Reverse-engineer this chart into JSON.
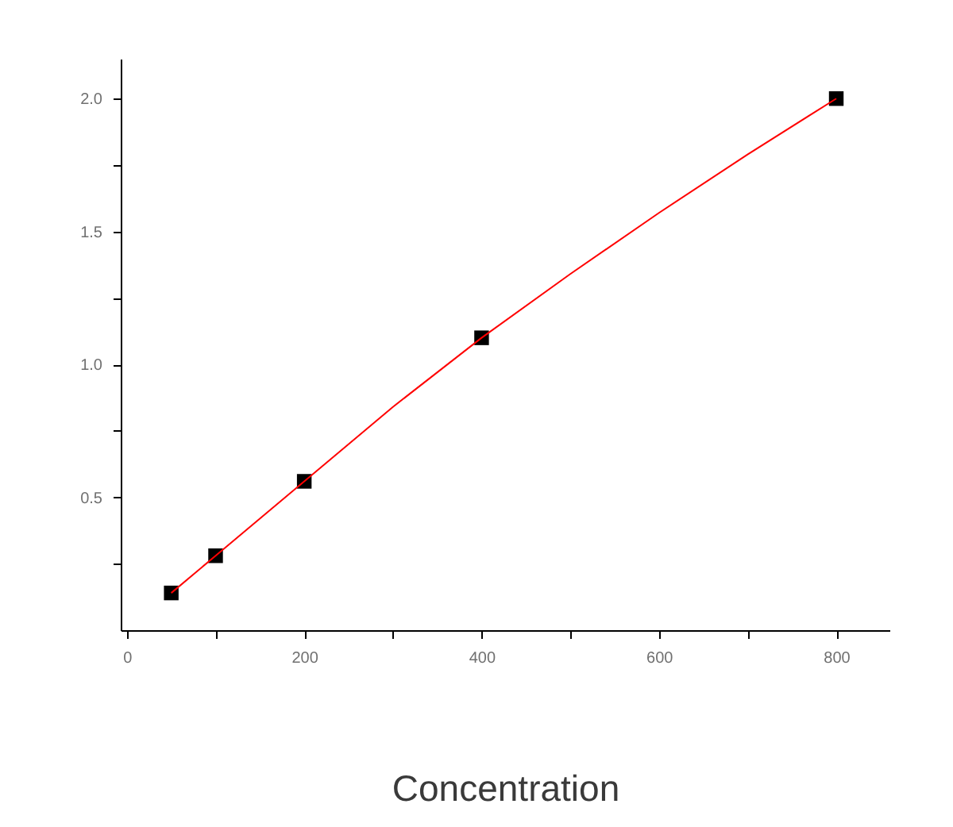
{
  "chart_data": {
    "type": "scatter",
    "xlabel": "Concentration",
    "x": [
      50,
      100,
      200,
      400,
      800
    ],
    "xlim": [
      -7,
      860
    ],
    "ylim": [
      0,
      2.15
    ],
    "xticks": [
      0,
      {
        "value": 100,
        "label": null
      },
      200,
      {
        "value": 300,
        "label": null
      },
      400,
      {
        "value": 500,
        "label": null
      },
      600,
      {
        "value": 700,
        "label": null
      },
      800
    ],
    "yticks": [
      {
        "value": 0.25,
        "label": null
      },
      0.5,
      {
        "value": 0.75,
        "label": null
      },
      {
        "value": 1,
        "label": "1.0"
      },
      {
        "value": 1.25,
        "label": null
      },
      1.5,
      {
        "value": 1.75,
        "label": null
      },
      {
        "value": 2,
        "label": "2.0"
      }
    ],
    "series": [
      {
        "color": "#000000",
        "marker": "square",
        "values": [
          0.14,
          0.28,
          0.56,
          1.1,
          2.0
        ]
      },
      {
        "type": "line",
        "color": "#ff0000",
        "line_style": "solid",
        "x": [
          50,
          100,
          200,
          300,
          400,
          500,
          600,
          700,
          800
        ],
        "values": [
          0.14,
          0.28,
          0.56,
          0.84,
          1.1,
          1.34,
          1.57,
          1.79,
          2.0
        ]
      }
    ]
  }
}
